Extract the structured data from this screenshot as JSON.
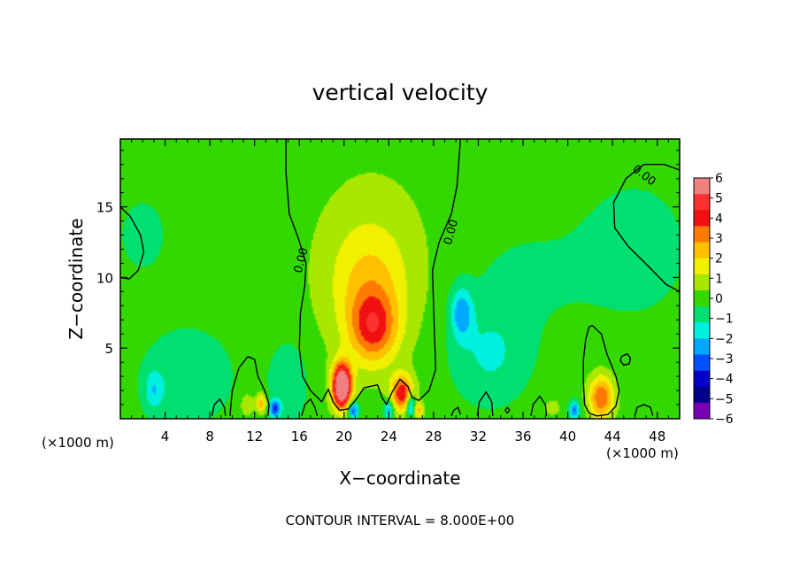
{
  "chart_data": {
    "type": "heatmap",
    "title": "vertical velocity",
    "xlabel": "X−coordinate",
    "ylabel": "Z−coordinate",
    "x_unit": "(×1000 m)",
    "x_unit_right": "(×1000 m)",
    "footer": "CONTOUR INTERVAL = 8.000E+00",
    "xlim": [
      0,
      50
    ],
    "ylim": [
      0,
      19.8
    ],
    "x_ticks": [
      4,
      8,
      12,
      16,
      20,
      24,
      28,
      32,
      36,
      40,
      44,
      48
    ],
    "x_tick_labels": [
      "4",
      "8",
      "12",
      "16",
      "20",
      "24",
      "28",
      "32",
      "36",
      "40",
      "44",
      "48"
    ],
    "y_ticks": [
      5,
      10,
      15
    ],
    "y_tick_labels": [
      "5",
      "10",
      "15"
    ],
    "contour_level_label": "0.00",
    "colorbar": {
      "values": [
        6,
        5,
        4,
        3,
        2,
        1,
        0,
        -1,
        -2,
        -3,
        -4,
        -5,
        -6
      ],
      "labels": [
        "6",
        "5",
        "4",
        "3",
        "2",
        "1",
        "0",
        "−1",
        "−2",
        "−3",
        "−4",
        "−5",
        "−6"
      ],
      "colors": [
        "#f08080",
        "#ff3030",
        "#f01010",
        "#ff7a00",
        "#ffc000",
        "#f0f000",
        "#a8e800",
        "#33d800",
        "#00e070",
        "#00f0e0",
        "#00a8ff",
        "#0050ff",
        "#0000c8",
        "#00008c",
        "#7a00b8"
      ]
    },
    "background_color": "#33e000",
    "features": [
      {
        "x": 19.8,
        "z": 2.3,
        "amp": 8.0,
        "sx": 0.6,
        "sz": 1.1
      },
      {
        "x": 25.2,
        "z": 1.8,
        "amp": 4.3,
        "sx": 0.7,
        "sz": 0.9
      },
      {
        "x": 22.6,
        "z": 6.4,
        "amp": 3.2,
        "sx": 1.5,
        "sz": 1.8
      },
      {
        "x": 22.2,
        "z": 9.5,
        "amp": 1.6,
        "sx": 2.5,
        "sz": 3.0
      },
      {
        "x": 22.5,
        "z": 11.5,
        "amp": 0.7,
        "sx": 4.0,
        "sz": 5.0
      },
      {
        "x": 43.0,
        "z": 1.5,
        "amp": 3.6,
        "sx": 0.8,
        "sz": 1.1
      },
      {
        "x": 12.6,
        "z": 1.1,
        "amp": 2.6,
        "sx": 0.35,
        "sz": 0.5
      },
      {
        "x": 26.6,
        "z": 0.6,
        "amp": 2.5,
        "sx": 0.35,
        "sz": 0.4
      },
      {
        "x": 11.3,
        "z": 1.0,
        "amp": 1.2,
        "sx": 0.4,
        "sz": 0.6
      },
      {
        "x": 38.6,
        "z": 0.8,
        "amp": 1.0,
        "sx": 0.5,
        "sz": 0.4
      },
      {
        "x": 20.8,
        "z": 0.6,
        "amp": -3.6,
        "sx": 0.35,
        "sz": 0.45
      },
      {
        "x": 13.8,
        "z": 0.7,
        "amp": -3.2,
        "sx": 0.35,
        "sz": 0.45
      },
      {
        "x": 26.0,
        "z": 0.9,
        "amp": -3.6,
        "sx": 0.3,
        "sz": 0.6
      },
      {
        "x": 24.0,
        "z": 0.6,
        "amp": -2.6,
        "sx": 0.3,
        "sz": 0.5
      },
      {
        "x": 40.6,
        "z": 0.6,
        "amp": -3.0,
        "sx": 0.35,
        "sz": 0.45
      },
      {
        "x": 15.0,
        "z": 2.5,
        "amp": -1.2,
        "sx": 1.2,
        "sz": 2.0
      },
      {
        "x": 30.5,
        "z": 7.5,
        "amp": -2.3,
        "sx": 0.7,
        "sz": 1.3
      },
      {
        "x": 33.0,
        "z": 4.5,
        "amp": -1.3,
        "sx": 2.5,
        "sz": 2.5
      },
      {
        "x": 6.0,
        "z": 3.0,
        "amp": -1.0,
        "sx": 3.0,
        "sz": 2.5
      },
      {
        "x": 3.0,
        "z": 2.0,
        "amp": -1.5,
        "sx": 0.6,
        "sz": 1.0
      },
      {
        "x": 46.0,
        "z": 12.0,
        "amp": -0.7,
        "sx": 4.0,
        "sz": 4.0
      },
      {
        "x": 2.0,
        "z": 13.0,
        "amp": -0.6,
        "sx": 2.0,
        "sz": 2.5
      },
      {
        "x": 36.0,
        "z": 10.0,
        "amp": -0.5,
        "sx": 4.0,
        "sz": 3.0
      }
    ],
    "contours": [
      {
        "points": [
          [
            14.8,
            19.8
          ],
          [
            14.8,
            17.5
          ],
          [
            15.1,
            14.5
          ],
          [
            15.9,
            12.8
          ],
          [
            16.6,
            11.0
          ],
          [
            16.5,
            9.5
          ],
          [
            16.1,
            7.5
          ],
          [
            16.0,
            5.0
          ],
          [
            16.3,
            3.0
          ],
          [
            17.0,
            2.0
          ],
          [
            18.0,
            1.2
          ],
          [
            18.6,
            2.1
          ],
          [
            19.0,
            1.2
          ],
          [
            19.6,
            0.6
          ],
          [
            20.4,
            0.7
          ],
          [
            21.1,
            1.4
          ],
          [
            21.8,
            2.2
          ],
          [
            23.0,
            2.4
          ],
          [
            23.4,
            1.5
          ],
          [
            23.8,
            1.0
          ],
          [
            24.3,
            1.9
          ],
          [
            25.0,
            2.8
          ],
          [
            25.7,
            2.3
          ],
          [
            26.1,
            1.5
          ],
          [
            26.7,
            1.3
          ],
          [
            27.6,
            2.0
          ],
          [
            28.2,
            3.5
          ],
          [
            28.1,
            5.5
          ],
          [
            28.0,
            8.0
          ],
          [
            27.9,
            10.5
          ],
          [
            28.5,
            12.5
          ],
          [
            29.6,
            14.5
          ],
          [
            30.1,
            16.5
          ],
          [
            30.4,
            19.8
          ]
        ],
        "closed": false
      },
      {
        "points": [
          [
            0.0,
            15.0
          ],
          [
            0.9,
            14.3
          ],
          [
            1.8,
            13.0
          ],
          [
            2.1,
            11.8
          ],
          [
            1.6,
            10.5
          ],
          [
            0.8,
            9.9
          ],
          [
            0.0,
            10.0
          ]
        ],
        "closed": false
      },
      {
        "points": [
          [
            50.0,
            17.6
          ],
          [
            48.6,
            18.0
          ],
          [
            46.8,
            18.0
          ],
          [
            45.2,
            17.0
          ],
          [
            44.1,
            15.3
          ],
          [
            44.2,
            13.5
          ],
          [
            45.4,
            12.2
          ],
          [
            47.2,
            10.8
          ],
          [
            48.8,
            9.5
          ],
          [
            50.0,
            9.0
          ]
        ],
        "closed": false
      },
      {
        "points": [
          [
            42.2,
            6.6
          ],
          [
            43.0,
            6.0
          ],
          [
            43.5,
            4.6
          ],
          [
            44.3,
            3.0
          ],
          [
            44.6,
            2.0
          ],
          [
            44.3,
            0.9
          ],
          [
            43.6,
            0.3
          ],
          [
            42.6,
            0.2
          ],
          [
            41.9,
            0.4
          ],
          [
            41.5,
            1.0
          ],
          [
            41.4,
            2.5
          ],
          [
            41.4,
            4.2
          ],
          [
            41.6,
            5.6
          ],
          [
            41.9,
            6.5
          ]
        ],
        "closed": true
      },
      {
        "points": [
          [
            9.8,
            0.2
          ],
          [
            10.0,
            2.0
          ],
          [
            10.6,
            3.6
          ],
          [
            11.4,
            4.4
          ],
          [
            12.0,
            4.2
          ],
          [
            12.3,
            3.0
          ],
          [
            12.9,
            2.0
          ],
          [
            13.3,
            1.0
          ],
          [
            13.2,
            0.2
          ]
        ],
        "closed": false
      },
      {
        "points": [
          [
            8.2,
            0.2
          ],
          [
            8.4,
            1.0
          ],
          [
            8.9,
            1.4
          ],
          [
            9.3,
            0.8
          ],
          [
            9.4,
            0.2
          ]
        ],
        "closed": false
      },
      {
        "points": [
          [
            16.2,
            0.2
          ],
          [
            16.5,
            1.0
          ],
          [
            17.0,
            1.4
          ],
          [
            17.4,
            0.8
          ],
          [
            17.6,
            0.2
          ]
        ],
        "closed": false
      },
      {
        "points": [
          [
            29.6,
            0.2
          ],
          [
            29.8,
            0.6
          ],
          [
            30.2,
            0.8
          ],
          [
            30.4,
            0.3
          ]
        ],
        "closed": false
      },
      {
        "points": [
          [
            31.9,
            0.2
          ],
          [
            32.1,
            1.2
          ],
          [
            32.7,
            1.9
          ],
          [
            33.2,
            1.2
          ],
          [
            33.3,
            0.2
          ]
        ],
        "closed": false
      },
      {
        "points": [
          [
            36.7,
            0.2
          ],
          [
            36.9,
            1.0
          ],
          [
            37.5,
            1.6
          ],
          [
            38.0,
            1.0
          ],
          [
            38.1,
            0.2
          ]
        ],
        "closed": false
      },
      {
        "points": [
          [
            46.0,
            0.2
          ],
          [
            46.2,
            0.8
          ],
          [
            46.8,
            1.0
          ],
          [
            47.4,
            0.8
          ],
          [
            47.6,
            0.2
          ]
        ],
        "closed": false
      },
      {
        "points": [
          [
            44.8,
            4.4
          ],
          [
            45.3,
            4.6
          ],
          [
            45.6,
            4.3
          ],
          [
            45.5,
            3.9
          ],
          [
            45.0,
            3.8
          ],
          [
            44.7,
            4.1
          ]
        ],
        "closed": true
      },
      {
        "points": [
          [
            34.4,
            0.6
          ],
          [
            34.6,
            0.8
          ],
          [
            34.8,
            0.6
          ],
          [
            34.6,
            0.4
          ]
        ],
        "closed": true
      }
    ],
    "contour_labels": [
      {
        "x": 16.2,
        "z": 11.2,
        "text": "0.00",
        "angle": -75
      },
      {
        "x": 29.6,
        "z": 13.2,
        "text": "0.00",
        "angle": -75
      },
      {
        "x": 46.8,
        "z": 17.2,
        "text": "0.00",
        "angle": 38
      }
    ]
  }
}
